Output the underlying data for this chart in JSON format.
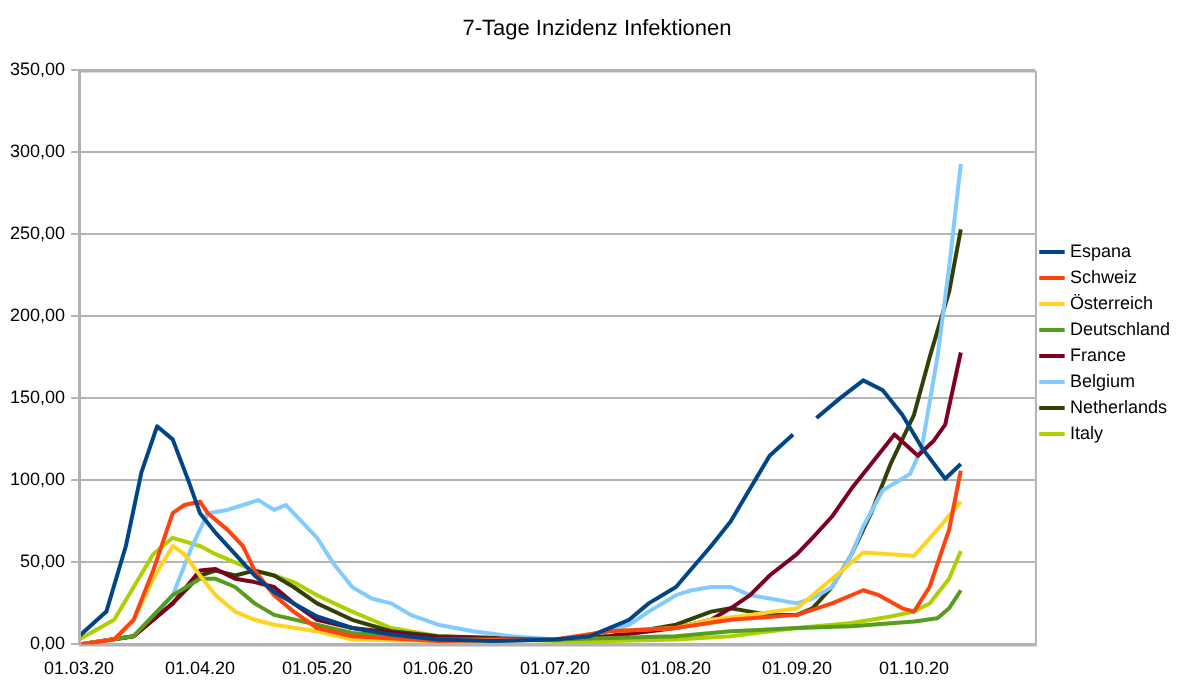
{
  "chart_data": {
    "type": "line",
    "title": "7-Tage Inzidenz Infektionen",
    "xlim": [
      "2020-03-01",
      "2020-11-01"
    ],
    "xticks": [
      {
        "value": "2020-03-01",
        "label": "01.03.20"
      },
      {
        "value": "2020-04-01",
        "label": "01.04.20"
      },
      {
        "value": "2020-05-01",
        "label": "01.05.20"
      },
      {
        "value": "2020-06-01",
        "label": "01.06.20"
      },
      {
        "value": "2020-07-01",
        "label": "01.07.20"
      },
      {
        "value": "2020-08-01",
        "label": "01.08.20"
      },
      {
        "value": "2020-09-01",
        "label": "01.09.20"
      },
      {
        "value": "2020-10-01",
        "label": "01.10.20"
      },
      {
        "value": "2020-11-01",
        "label": null
      }
    ],
    "ylim": [
      0,
      350
    ],
    "yticks": [
      {
        "value": 0,
        "label": "0,00"
      },
      {
        "value": 50,
        "label": "50,00"
      },
      {
        "value": 100,
        "label": "100,00"
      },
      {
        "value": 150,
        "label": "150,00"
      },
      {
        "value": 200,
        "label": "200,00"
      },
      {
        "value": 250,
        "label": "250,00"
      },
      {
        "value": 300,
        "label": "300,00"
      },
      {
        "value": 350,
        "label": "350,00"
      }
    ],
    "grid": "y",
    "legend": "right",
    "marker": "none",
    "line_style": "solid",
    "series": [
      {
        "name": "Espana",
        "color": "#004586",
        "x": [
          "2020-03-01",
          "2020-03-08",
          "2020-03-13",
          "2020-03-17",
          "2020-03-21",
          "2020-03-25",
          "2020-03-29",
          "2020-04-01",
          "2020-04-05",
          "2020-04-10",
          "2020-04-15",
          "2020-04-20",
          "2020-04-25",
          "2020-05-01",
          "2020-05-10",
          "2020-05-20",
          "2020-06-01",
          "2020-06-15",
          "2020-07-01",
          "2020-07-10",
          "2020-07-20",
          "2020-07-25",
          "2020-08-01",
          "2020-08-10",
          "2020-08-15",
          "2020-08-20",
          "2020-08-25",
          "2020-08-31",
          "2020-09-03",
          "2020-09-06",
          "2020-09-12",
          "2020-09-18",
          "2020-09-23",
          "2020-09-28",
          "2020-10-03",
          "2020-10-09",
          "2020-10-13"
        ],
        "values": [
          5,
          20,
          60,
          105,
          133,
          125,
          100,
          80,
          68,
          55,
          42,
          32,
          25,
          17,
          10,
          6,
          3,
          2,
          3,
          5,
          15,
          25,
          35,
          60,
          75,
          95,
          115,
          128,
          null,
          138,
          150,
          161,
          155,
          140,
          120,
          101,
          110
        ]
      },
      {
        "name": "Schweiz",
        "color": "#ff420e",
        "x": [
          "2020-03-01",
          "2020-03-10",
          "2020-03-15",
          "2020-03-20",
          "2020-03-25",
          "2020-03-28",
          "2020-04-01",
          "2020-04-03",
          "2020-04-08",
          "2020-04-12",
          "2020-04-15",
          "2020-04-20",
          "2020-04-25",
          "2020-05-01",
          "2020-05-10",
          "2020-06-01",
          "2020-07-01",
          "2020-07-15",
          "2020-08-01",
          "2020-08-15",
          "2020-09-01",
          "2020-09-10",
          "2020-09-18",
          "2020-09-22",
          "2020-09-28",
          "2020-10-01",
          "2020-10-05",
          "2020-10-10",
          "2020-10-13"
        ],
        "values": [
          0,
          3,
          15,
          45,
          80,
          85,
          87,
          80,
          70,
          60,
          45,
          30,
          20,
          10,
          5,
          2,
          3,
          8,
          10,
          15,
          18,
          25,
          33,
          30,
          22,
          20,
          35,
          70,
          106
        ]
      },
      {
        "name": "Österreich",
        "color": "#ffd320",
        "x": [
          "2020-03-01",
          "2020-03-10",
          "2020-03-15",
          "2020-03-20",
          "2020-03-25",
          "2020-03-28",
          "2020-04-01",
          "2020-04-05",
          "2020-04-10",
          "2020-04-15",
          "2020-04-20",
          "2020-05-01",
          "2020-05-10",
          "2020-06-01",
          "2020-07-01",
          "2020-07-15",
          "2020-08-01",
          "2020-08-10",
          "2020-08-20",
          "2020-09-01",
          "2020-09-10",
          "2020-09-18",
          "2020-09-25",
          "2020-10-01",
          "2020-10-07",
          "2020-10-13"
        ],
        "values": [
          0,
          3,
          15,
          40,
          60,
          55,
          42,
          30,
          20,
          15,
          12,
          8,
          3,
          2,
          3,
          8,
          10,
          15,
          18,
          22,
          40,
          56,
          55,
          54,
          70,
          87
        ]
      },
      {
        "name": "Deutschland",
        "color": "#579d1c",
        "x": [
          "2020-03-01",
          "2020-03-15",
          "2020-03-25",
          "2020-04-01",
          "2020-04-05",
          "2020-04-10",
          "2020-04-15",
          "2020-04-20",
          "2020-05-01",
          "2020-05-10",
          "2020-06-01",
          "2020-07-01",
          "2020-08-01",
          "2020-08-15",
          "2020-09-01",
          "2020-09-15",
          "2020-10-01",
          "2020-10-07",
          "2020-10-10",
          "2020-10-13"
        ],
        "values": [
          0,
          5,
          30,
          40,
          40,
          35,
          25,
          18,
          12,
          7,
          3,
          3,
          5,
          8,
          10,
          11,
          14,
          16,
          22,
          33
        ]
      },
      {
        "name": "France",
        "color": "#7e0021",
        "x": [
          "2020-03-01",
          "2020-03-15",
          "2020-03-25",
          "2020-04-01",
          "2020-04-05",
          "2020-04-10",
          "2020-04-15",
          "2020-04-20",
          "2020-04-25",
          "2020-05-01",
          "2020-05-10",
          "2020-06-01",
          "2020-07-01",
          "2020-07-15",
          "2020-08-01",
          "2020-08-10",
          "2020-08-15",
          "2020-08-20",
          "2020-08-25",
          "2020-09-01",
          "2020-09-05",
          "2020-09-10",
          "2020-09-15",
          "2020-09-20",
          "2020-09-26",
          "2020-10-02",
          "2020-10-06",
          "2020-10-09",
          "2020-10-13"
        ],
        "values": [
          0,
          5,
          25,
          45,
          46,
          40,
          38,
          35,
          25,
          15,
          10,
          4,
          3,
          5,
          10,
          15,
          22,
          30,
          42,
          55,
          65,
          78,
          95,
          110,
          128,
          115,
          124,
          134,
          178
        ]
      },
      {
        "name": "Belgium",
        "color": "#83caff",
        "x": [
          "2020-03-01",
          "2020-03-15",
          "2020-03-25",
          "2020-03-30",
          "2020-04-03",
          "2020-04-08",
          "2020-04-12",
          "2020-04-16",
          "2020-04-20",
          "2020-04-23",
          "2020-04-27",
          "2020-05-01",
          "2020-05-05",
          "2020-05-10",
          "2020-05-15",
          "2020-05-20",
          "2020-05-25",
          "2020-06-01",
          "2020-06-10",
          "2020-06-20",
          "2020-07-01",
          "2020-07-10",
          "2020-07-20",
          "2020-07-25",
          "2020-08-01",
          "2020-08-05",
          "2020-08-10",
          "2020-08-15",
          "2020-08-20",
          "2020-08-25",
          "2020-09-01",
          "2020-09-05",
          "2020-09-10",
          "2020-09-15",
          "2020-09-18",
          "2020-09-23",
          "2020-09-30",
          "2020-10-03",
          "2020-10-07",
          "2020-10-10",
          "2020-10-13"
        ],
        "values": [
          0,
          5,
          30,
          60,
          80,
          82,
          85,
          88,
          82,
          85,
          75,
          65,
          50,
          35,
          28,
          25,
          18,
          12,
          8,
          5,
          3,
          5,
          12,
          20,
          30,
          33,
          35,
          35,
          30,
          28,
          25,
          28,
          35,
          55,
          72,
          94,
          104,
          120,
          175,
          230,
          293
        ]
      },
      {
        "name": "Netherlands",
        "color": "#314004",
        "x": [
          "2020-03-01",
          "2020-03-15",
          "2020-03-25",
          "2020-04-01",
          "2020-04-05",
          "2020-04-10",
          "2020-04-15",
          "2020-04-20",
          "2020-04-25",
          "2020-05-01",
          "2020-05-10",
          "2020-05-20",
          "2020-06-01",
          "2020-07-01",
          "2020-07-15",
          "2020-08-01",
          "2020-08-10",
          "2020-08-15",
          "2020-08-20",
          "2020-08-25",
          "2020-09-01",
          "2020-09-05",
          "2020-09-10",
          "2020-09-15",
          "2020-09-20",
          "2020-09-25",
          "2020-10-01",
          "2020-10-05",
          "2020-10-10",
          "2020-10-13"
        ],
        "values": [
          0,
          5,
          25,
          42,
          45,
          42,
          45,
          42,
          35,
          25,
          15,
          8,
          5,
          3,
          5,
          12,
          20,
          22,
          20,
          18,
          18,
          22,
          35,
          55,
          80,
          110,
          140,
          175,
          215,
          253
        ]
      },
      {
        "name": "Italy",
        "color": "#aecf00",
        "x": [
          "2020-03-01",
          "2020-03-10",
          "2020-03-15",
          "2020-03-20",
          "2020-03-25",
          "2020-04-01",
          "2020-04-05",
          "2020-04-10",
          "2020-04-15",
          "2020-04-20",
          "2020-04-25",
          "2020-05-01",
          "2020-05-10",
          "2020-05-20",
          "2020-06-01",
          "2020-07-01",
          "2020-07-15",
          "2020-08-01",
          "2020-08-15",
          "2020-09-01",
          "2020-09-15",
          "2020-09-25",
          "2020-10-01",
          "2020-10-05",
          "2020-10-10",
          "2020-10-13"
        ],
        "values": [
          3,
          15,
          35,
          55,
          65,
          60,
          55,
          50,
          45,
          42,
          38,
          30,
          20,
          10,
          5,
          2,
          2,
          3,
          5,
          10,
          13,
          17,
          20,
          25,
          40,
          57
        ]
      }
    ]
  }
}
